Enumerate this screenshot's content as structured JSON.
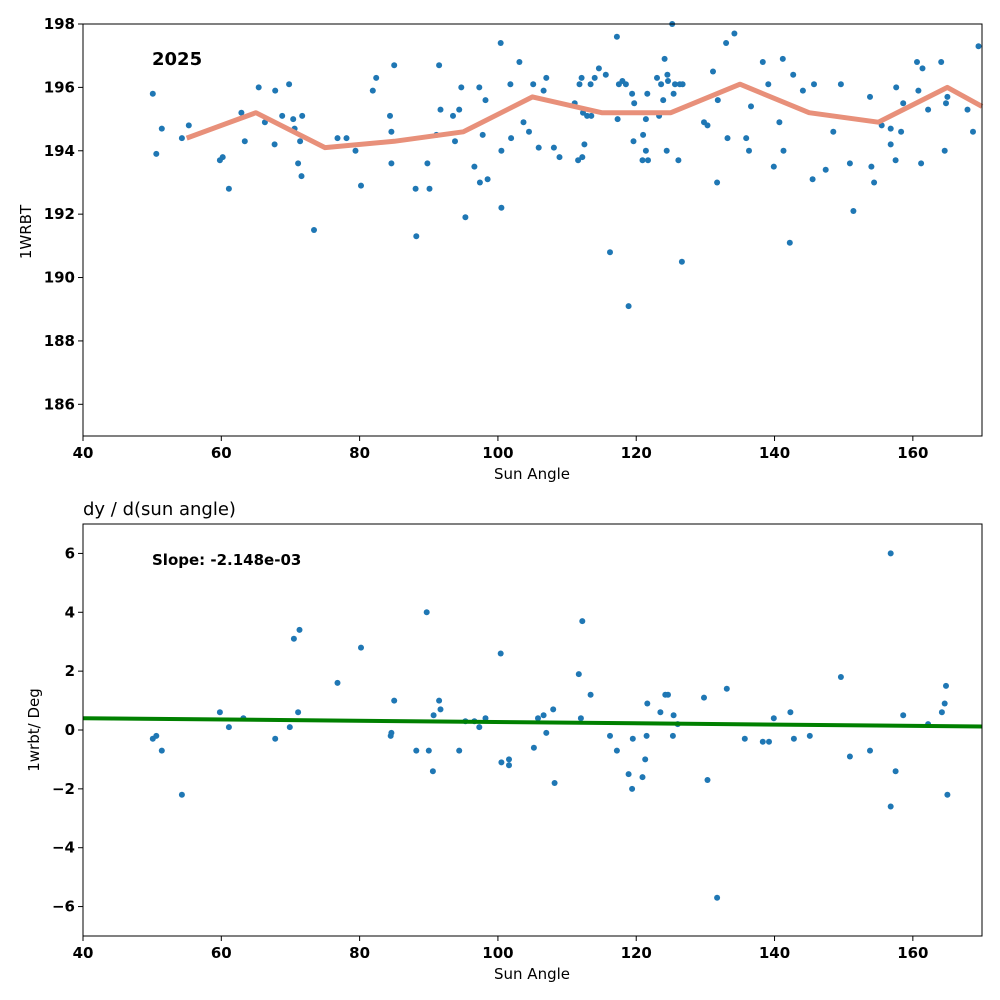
{
  "chart_data": [
    {
      "type": "scatter",
      "title": "",
      "annotation": "2025",
      "xlabel": "Sun Angle",
      "ylabel": "1WRBT",
      "xlim": [
        40,
        170
      ],
      "ylim": [
        185,
        198
      ],
      "xticks": [
        "40",
        "60",
        "80",
        "100",
        "120",
        "140",
        "160"
      ],
      "yticks": [
        "186",
        "188",
        "190",
        "192",
        "194",
        "196",
        "198"
      ],
      "colors": {
        "points": "#1f77b4",
        "trend": "#e8907a"
      },
      "series": [
        {
          "points": [
            [
              50.1,
              195.8
            ],
            [
              50.6,
              193.9
            ],
            [
              51.4,
              194.7
            ],
            [
              54.3,
              194.4
            ],
            [
              55.3,
              194.8
            ],
            [
              59.8,
              193.7
            ],
            [
              60.2,
              193.8
            ],
            [
              61.1,
              192.8
            ],
            [
              62.9,
              195.2
            ],
            [
              63.4,
              194.3
            ],
            [
              65.4,
              196.0
            ],
            [
              66.3,
              194.9
            ],
            [
              67.7,
              194.2
            ],
            [
              67.8,
              195.9
            ],
            [
              68.8,
              195.1
            ],
            [
              69.8,
              196.1
            ],
            [
              70.4,
              195.0
            ],
            [
              70.6,
              194.7
            ],
            [
              71.1,
              193.6
            ],
            [
              71.4,
              194.3
            ],
            [
              71.6,
              193.2
            ],
            [
              71.7,
              195.1
            ],
            [
              73.4,
              191.5
            ],
            [
              76.8,
              194.4
            ],
            [
              78.1,
              194.4
            ],
            [
              79.4,
              194.0
            ],
            [
              80.2,
              192.9
            ],
            [
              81.9,
              195.9
            ],
            [
              82.4,
              196.3
            ],
            [
              84.4,
              195.1
            ],
            [
              84.6,
              194.6
            ],
            [
              84.6,
              193.6
            ],
            [
              85.0,
              196.7
            ],
            [
              88.1,
              192.8
            ],
            [
              88.2,
              191.3
            ],
            [
              89.8,
              193.6
            ],
            [
              90.1,
              192.8
            ],
            [
              91.1,
              194.5
            ],
            [
              91.5,
              196.7
            ],
            [
              91.7,
              195.3
            ],
            [
              93.5,
              195.1
            ],
            [
              93.8,
              194.3
            ],
            [
              94.4,
              195.3
            ],
            [
              94.7,
              196.0
            ],
            [
              95.3,
              191.9
            ],
            [
              96.6,
              193.5
            ],
            [
              97.3,
              196.0
            ],
            [
              97.4,
              193.0
            ],
            [
              97.8,
              194.5
            ],
            [
              98.2,
              195.6
            ],
            [
              98.5,
              193.1
            ],
            [
              100.4,
              197.4
            ],
            [
              100.5,
              194.0
            ],
            [
              100.5,
              192.2
            ],
            [
              101.8,
              196.1
            ],
            [
              101.9,
              194.4
            ],
            [
              103.1,
              196.8
            ],
            [
              103.7,
              194.9
            ],
            [
              104.5,
              194.6
            ],
            [
              105.1,
              196.1
            ],
            [
              105.9,
              194.1
            ],
            [
              106.6,
              195.9
            ],
            [
              107.0,
              196.3
            ],
            [
              108.1,
              194.1
            ],
            [
              108.9,
              193.8
            ],
            [
              111.1,
              195.5
            ],
            [
              111.6,
              193.7
            ],
            [
              111.8,
              196.1
            ],
            [
              112.1,
              196.3
            ],
            [
              112.2,
              193.8
            ],
            [
              112.3,
              195.2
            ],
            [
              112.5,
              194.2
            ],
            [
              112.9,
              195.1
            ],
            [
              113.4,
              196.1
            ],
            [
              113.5,
              195.1
            ],
            [
              114.0,
              196.3
            ],
            [
              114.6,
              196.6
            ],
            [
              115.6,
              196.4
            ],
            [
              116.2,
              190.8
            ],
            [
              117.2,
              197.6
            ],
            [
              117.3,
              195.0
            ],
            [
              117.5,
              196.1
            ],
            [
              118.0,
              196.2
            ],
            [
              118.5,
              196.1
            ],
            [
              118.9,
              189.1
            ],
            [
              119.4,
              195.8
            ],
            [
              119.6,
              194.3
            ],
            [
              119.7,
              195.5
            ],
            [
              120.9,
              193.7
            ],
            [
              121.0,
              194.5
            ],
            [
              121.4,
              195.0
            ],
            [
              121.4,
              194.0
            ],
            [
              121.6,
              195.8
            ],
            [
              121.7,
              193.7
            ],
            [
              123.0,
              196.3
            ],
            [
              123.3,
              195.1
            ],
            [
              123.6,
              196.1
            ],
            [
              123.9,
              195.6
            ],
            [
              124.1,
              196.9
            ],
            [
              124.4,
              194.0
            ],
            [
              124.5,
              196.4
            ],
            [
              124.6,
              196.2
            ],
            [
              125.2,
              198.0
            ],
            [
              125.4,
              195.8
            ],
            [
              125.6,
              196.1
            ],
            [
              126.1,
              193.7
            ],
            [
              126.3,
              196.1
            ],
            [
              126.6,
              190.5
            ],
            [
              126.7,
              196.1
            ],
            [
              129.8,
              194.9
            ],
            [
              130.3,
              194.8
            ],
            [
              131.1,
              196.5
            ],
            [
              131.8,
              195.6
            ],
            [
              131.7,
              193.0
            ],
            [
              133.0,
              197.4
            ],
            [
              133.2,
              194.4
            ],
            [
              134.2,
              197.7
            ],
            [
              135.9,
              194.4
            ],
            [
              136.3,
              194.0
            ],
            [
              136.6,
              195.4
            ],
            [
              138.3,
              196.8
            ],
            [
              139.1,
              196.1
            ],
            [
              139.9,
              193.5
            ],
            [
              140.7,
              194.9
            ],
            [
              141.2,
              196.9
            ],
            [
              141.3,
              194.0
            ],
            [
              142.2,
              191.1
            ],
            [
              142.7,
              196.4
            ],
            [
              144.1,
              195.9
            ],
            [
              145.5,
              193.1
            ],
            [
              145.7,
              196.1
            ],
            [
              147.4,
              193.4
            ],
            [
              148.5,
              194.6
            ],
            [
              149.6,
              196.1
            ],
            [
              150.9,
              193.6
            ],
            [
              151.4,
              192.1
            ],
            [
              153.8,
              195.7
            ],
            [
              154.0,
              193.5
            ],
            [
              154.4,
              193.0
            ],
            [
              155.5,
              194.8
            ],
            [
              156.8,
              194.7
            ],
            [
              156.8,
              194.2
            ],
            [
              157.5,
              193.7
            ],
            [
              157.6,
              196.0
            ],
            [
              158.3,
              194.6
            ],
            [
              158.6,
              195.5
            ],
            [
              160.6,
              196.8
            ],
            [
              160.8,
              195.9
            ],
            [
              161.2,
              193.6
            ],
            [
              161.4,
              196.6
            ],
            [
              162.2,
              195.3
            ],
            [
              164.1,
              196.8
            ],
            [
              164.6,
              194.0
            ],
            [
              164.8,
              195.5
            ],
            [
              165.0,
              195.7
            ],
            [
              167.9,
              195.3
            ],
            [
              168.7,
              194.6
            ],
            [
              169.5,
              197.3
            ]
          ]
        }
      ],
      "trend_line": {
        "x": [
          55,
          65,
          75,
          85,
          95,
          105,
          115,
          125,
          135,
          145,
          155,
          165,
          170
        ],
        "y": [
          194.4,
          195.2,
          194.1,
          194.3,
          194.6,
          195.7,
          195.2,
          195.2,
          196.1,
          195.2,
          194.9,
          196.0,
          195.4
        ]
      }
    },
    {
      "type": "scatter",
      "title": "dy / d(sun angle)",
      "annotation": "Slope: -2.148e-03",
      "xlabel": "Sun Angle",
      "ylabel": "1wrbt/ Deg",
      "xlim": [
        40,
        170
      ],
      "ylim": [
        -7,
        7
      ],
      "xticks": [
        "40",
        "60",
        "80",
        "100",
        "120",
        "140",
        "160"
      ],
      "yticks": [
        "−6",
        "−4",
        "−2",
        "0",
        "2",
        "4",
        "6"
      ],
      "colors": {
        "points": "#1f77b4",
        "fit": "#008000"
      },
      "series": [
        {
          "points": [
            [
              50.1,
              -0.3
            ],
            [
              50.6,
              -0.2
            ],
            [
              51.4,
              -0.7
            ],
            [
              54.3,
              -2.2
            ],
            [
              59.8,
              0.6
            ],
            [
              61.1,
              0.1
            ],
            [
              63.2,
              0.4
            ],
            [
              67.8,
              -0.3
            ],
            [
              69.9,
              0.1
            ],
            [
              70.5,
              3.1
            ],
            [
              71.1,
              0.6
            ],
            [
              71.3,
              3.4
            ],
            [
              76.8,
              1.6
            ],
            [
              80.2,
              2.8
            ],
            [
              84.5,
              -0.2
            ],
            [
              84.6,
              -0.1
            ],
            [
              85.0,
              1.0
            ],
            [
              88.2,
              -0.7
            ],
            [
              89.7,
              4.0
            ],
            [
              90.0,
              -0.7
            ],
            [
              90.6,
              -1.4
            ],
            [
              90.7,
              0.5
            ],
            [
              91.5,
              1.0
            ],
            [
              91.7,
              0.7
            ],
            [
              94.4,
              -0.7
            ],
            [
              95.3,
              0.3
            ],
            [
              96.6,
              0.3
            ],
            [
              97.3,
              0.1
            ],
            [
              98.2,
              0.4
            ],
            [
              100.4,
              2.6
            ],
            [
              100.5,
              -1.1
            ],
            [
              101.6,
              -1.0
            ],
            [
              101.6,
              -1.2
            ],
            [
              105.2,
              -0.6
            ],
            [
              105.8,
              0.4
            ],
            [
              106.6,
              0.5
            ],
            [
              107.0,
              -0.1
            ],
            [
              108.0,
              0.7
            ],
            [
              108.2,
              -1.8
            ],
            [
              111.7,
              1.9
            ],
            [
              112.0,
              0.4
            ],
            [
              112.2,
              3.7
            ],
            [
              113.4,
              1.2
            ],
            [
              116.2,
              -0.2
            ],
            [
              117.2,
              -0.7
            ],
            [
              118.9,
              -1.5
            ],
            [
              119.4,
              -2.0
            ],
            [
              119.5,
              -0.3
            ],
            [
              120.9,
              -1.6
            ],
            [
              121.3,
              -1.0
            ],
            [
              121.5,
              -0.2
            ],
            [
              121.6,
              0.9
            ],
            [
              123.5,
              0.6
            ],
            [
              124.2,
              1.2
            ],
            [
              124.6,
              1.2
            ],
            [
              125.3,
              -0.2
            ],
            [
              125.4,
              0.5
            ],
            [
              126.0,
              0.2
            ],
            [
              129.8,
              1.1
            ],
            [
              130.3,
              -1.7
            ],
            [
              131.7,
              -5.7
            ],
            [
              133.1,
              1.4
            ],
            [
              135.7,
              -0.3
            ],
            [
              138.3,
              -0.4
            ],
            [
              139.2,
              -0.4
            ],
            [
              139.9,
              0.4
            ],
            [
              142.3,
              0.6
            ],
            [
              142.8,
              -0.3
            ],
            [
              145.1,
              -0.2
            ],
            [
              149.6,
              1.8
            ],
            [
              150.9,
              -0.9
            ],
            [
              153.8,
              -0.7
            ],
            [
              156.8,
              -2.6
            ],
            [
              156.8,
              6.0
            ],
            [
              157.5,
              -1.4
            ],
            [
              158.6,
              0.5
            ],
            [
              162.2,
              0.2
            ],
            [
              164.2,
              0.6
            ],
            [
              164.6,
              0.9
            ],
            [
              164.8,
              1.5
            ],
            [
              165.0,
              -2.2
            ]
          ]
        }
      ],
      "fit_line": {
        "x": [
          40,
          170
        ],
        "y": [
          0.4,
          0.12
        ]
      }
    }
  ]
}
